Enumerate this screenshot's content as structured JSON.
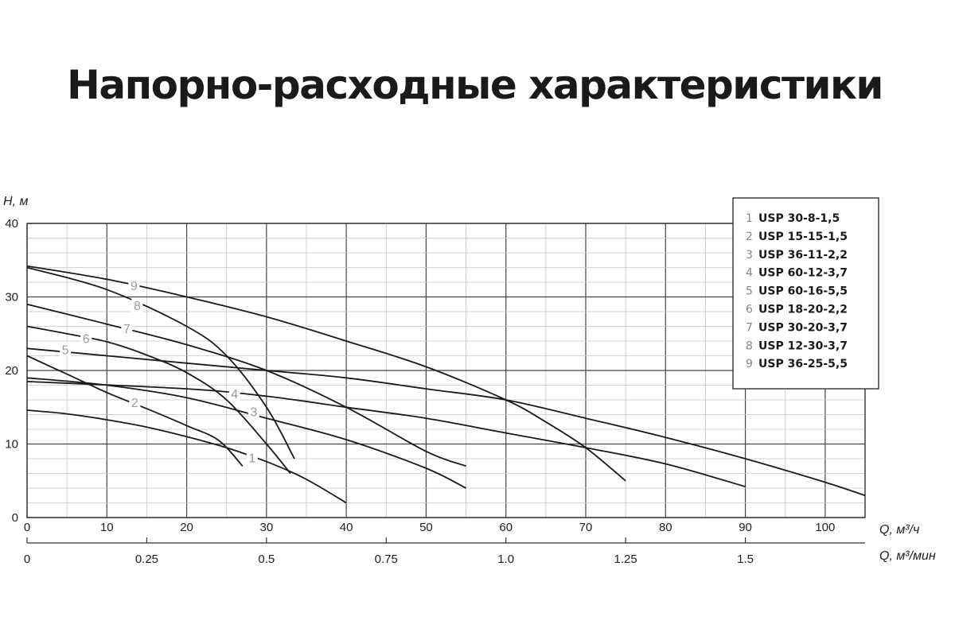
{
  "title": "Напорно-расходные характеристики",
  "chart_data": {
    "type": "line",
    "ylabel": "H, м",
    "xlabel": "Q, м³/ч",
    "xlabel2": "Q, м³/мин",
    "xlim": [
      0,
      105
    ],
    "ylim": [
      0,
      40
    ],
    "xticks": [
      0,
      10,
      20,
      30,
      40,
      50,
      60,
      70,
      80,
      90,
      100
    ],
    "yticks": [
      0,
      10,
      20,
      30,
      40
    ],
    "x2ticks": [
      {
        "value": 0,
        "label": "0"
      },
      {
        "value": 0.25,
        "label": "0.25"
      },
      {
        "value": 0.5,
        "label": "0.5"
      },
      {
        "value": 0.75,
        "label": "0.75"
      },
      {
        "value": 1.0,
        "label": "1.0"
      },
      {
        "value": 1.25,
        "label": "1.25"
      },
      {
        "value": 1.5,
        "label": "1.5"
      }
    ],
    "grid": true,
    "legend_position": "top-right",
    "series": [
      {
        "id": "1",
        "name": "USP 30-8-1,5",
        "label_at": [
          28.2,
          8.1
        ],
        "points": [
          [
            0,
            14.6
          ],
          [
            5,
            14.1
          ],
          [
            10,
            13.3
          ],
          [
            15,
            12.3
          ],
          [
            20,
            11.0
          ],
          [
            25,
            9.5
          ],
          [
            30,
            7.6
          ],
          [
            33.5,
            6.0
          ],
          [
            36,
            4.6
          ],
          [
            40,
            2.0
          ]
        ]
      },
      {
        "id": "2",
        "name": "USP 15-15-1,5",
        "label_at": [
          13.5,
          15.6
        ],
        "points": [
          [
            0,
            22.0
          ],
          [
            5,
            19.5
          ],
          [
            10,
            17.0
          ],
          [
            15,
            14.8
          ],
          [
            20,
            12.5
          ],
          [
            24,
            10.5
          ],
          [
            27,
            7.0
          ]
        ]
      },
      {
        "id": "3",
        "name": "USP 36-11-2,2",
        "label_at": [
          28.4,
          14.4
        ],
        "points": [
          [
            0,
            19.0
          ],
          [
            10,
            18.0
          ],
          [
            20,
            16.3
          ],
          [
            30,
            13.5
          ],
          [
            40,
            10.6
          ],
          [
            50,
            6.7
          ],
          [
            55,
            4.0
          ]
        ]
      },
      {
        "id": "4",
        "name": "USP 60-12-3,7",
        "label_at": [
          26.0,
          16.8
        ],
        "points": [
          [
            0,
            18.5
          ],
          [
            20,
            17.5
          ],
          [
            30,
            16.5
          ],
          [
            40,
            15.0
          ],
          [
            50,
            13.5
          ],
          [
            60,
            11.5
          ],
          [
            70,
            9.5
          ],
          [
            80,
            7.3
          ],
          [
            90,
            4.2
          ]
        ]
      },
      {
        "id": "5",
        "name": "USP 60-16-5,5",
        "label_at": [
          4.8,
          22.8
        ],
        "points": [
          [
            0,
            23.0
          ],
          [
            10,
            22.0
          ],
          [
            20,
            21.0
          ],
          [
            30,
            20.0
          ],
          [
            40,
            19.0
          ],
          [
            50,
            17.5
          ],
          [
            60,
            16.0
          ],
          [
            70,
            13.5
          ],
          [
            80,
            10.9
          ],
          [
            90,
            8.0
          ],
          [
            100,
            4.8
          ],
          [
            105,
            3.0
          ]
        ]
      },
      {
        "id": "6",
        "name": "USP 18-20-2,2",
        "label_at": [
          7.4,
          24.3
        ],
        "points": [
          [
            0,
            26.0
          ],
          [
            5,
            25.0
          ],
          [
            10,
            23.9
          ],
          [
            15,
            22.1
          ],
          [
            20,
            19.7
          ],
          [
            25,
            16.0
          ],
          [
            30,
            10.0
          ],
          [
            33,
            6.0
          ]
        ]
      },
      {
        "id": "7",
        "name": "USP 30-20-3,7",
        "label_at": [
          12.5,
          25.7
        ],
        "points": [
          [
            0,
            29.0
          ],
          [
            10,
            26.3
          ],
          [
            20,
            23.5
          ],
          [
            30,
            20.0
          ],
          [
            40,
            15.0
          ],
          [
            50,
            9.0
          ],
          [
            55,
            7.0
          ]
        ]
      },
      {
        "id": "8",
        "name": "USP 12-30-3,7",
        "label_at": [
          13.8,
          28.8
        ],
        "points": [
          [
            0,
            34.0
          ],
          [
            10,
            31.0
          ],
          [
            20,
            26.0
          ],
          [
            25,
            22.0
          ],
          [
            30,
            15.0
          ],
          [
            33.5,
            8.0
          ]
        ]
      },
      {
        "id": "9",
        "name": "USP 36-25-5,5",
        "label_at": [
          13.4,
          31.5
        ],
        "points": [
          [
            0,
            34.2
          ],
          [
            10,
            32.4
          ],
          [
            20,
            30.0
          ],
          [
            30,
            27.3
          ],
          [
            40,
            24.0
          ],
          [
            50,
            20.5
          ],
          [
            60,
            16.0
          ],
          [
            65,
            13.0
          ],
          [
            70,
            9.5
          ],
          [
            75,
            5.0
          ]
        ]
      }
    ]
  }
}
